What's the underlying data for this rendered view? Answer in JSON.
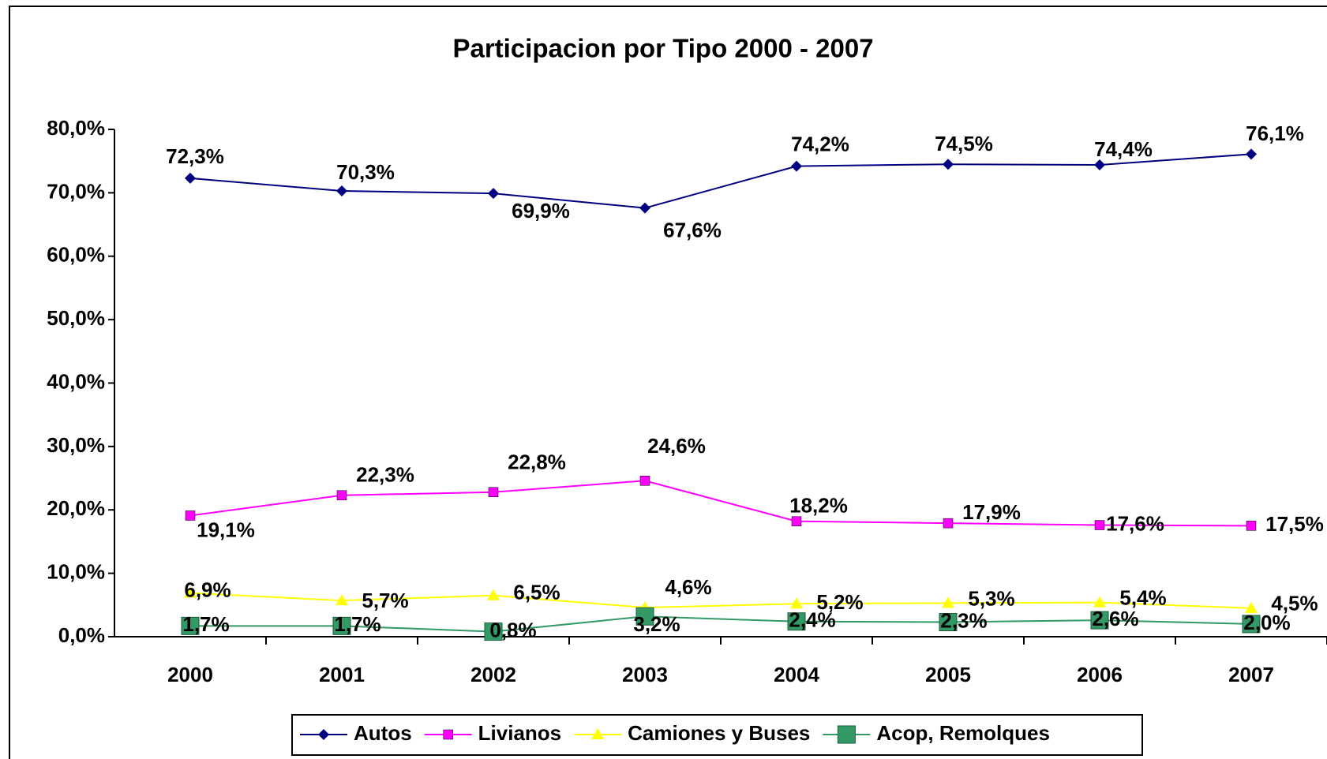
{
  "chart_data": {
    "type": "line",
    "title": "Participacion por Tipo 2000 - 2007",
    "categories": [
      "2000",
      "2001",
      "2002",
      "2003",
      "2004",
      "2005",
      "2006",
      "2007"
    ],
    "ylim": [
      0,
      80
    ],
    "yticks": [
      {
        "value": 0,
        "label": "0,0%"
      },
      {
        "value": 10,
        "label": "10,0%"
      },
      {
        "value": 20,
        "label": "20,0%"
      },
      {
        "value": 30,
        "label": "30,0%"
      },
      {
        "value": 40,
        "label": "40,0%"
      },
      {
        "value": 50,
        "label": "50,0%"
      },
      {
        "value": 60,
        "label": "60,0%"
      },
      {
        "value": 70,
        "label": "70,0%"
      },
      {
        "value": 80,
        "label": "80,0%"
      }
    ],
    "grid": false,
    "legend": "bottom",
    "series": [
      {
        "name": "Autos",
        "color": "#000080",
        "marker": "diamond",
        "values": [
          72.3,
          70.3,
          69.9,
          67.6,
          74.2,
          74.5,
          74.4,
          76.1
        ],
        "value_labels": [
          "72,3%",
          "70,3%",
          "69,9%",
          "67,6%",
          "74,2%",
          "74,5%",
          "74,4%",
          "76,1%"
        ]
      },
      {
        "name": "Livianos",
        "color": "#ff00ff",
        "marker": "square",
        "values": [
          19.1,
          22.3,
          22.8,
          24.6,
          18.2,
          17.9,
          17.6,
          17.5
        ],
        "value_labels": [
          "19,1%",
          "22,3%",
          "22,8%",
          "24,6%",
          "18,2%",
          "17,9%",
          "17,6%",
          "17,5%"
        ]
      },
      {
        "name": "Camiones y Buses",
        "color": "#ffff00",
        "marker": "triangle",
        "values": [
          6.9,
          5.7,
          6.5,
          4.6,
          5.2,
          5.3,
          5.4,
          4.5
        ],
        "value_labels": [
          "6,9%",
          "5,7%",
          "6,5%",
          "4,6%",
          "5,2%",
          "5,3%",
          "5,4%",
          "4,5%"
        ]
      },
      {
        "name": "Acop, Remolques",
        "color": "#339966",
        "marker": "bigsquare",
        "values": [
          1.7,
          1.7,
          0.8,
          3.2,
          2.4,
          2.3,
          2.6,
          2.0
        ],
        "value_labels": [
          "1,7%",
          "1,7%",
          "0,8%",
          "3,2%",
          "2,4%",
          "2,3%",
          "2,6%",
          "2,0%"
        ]
      }
    ]
  }
}
